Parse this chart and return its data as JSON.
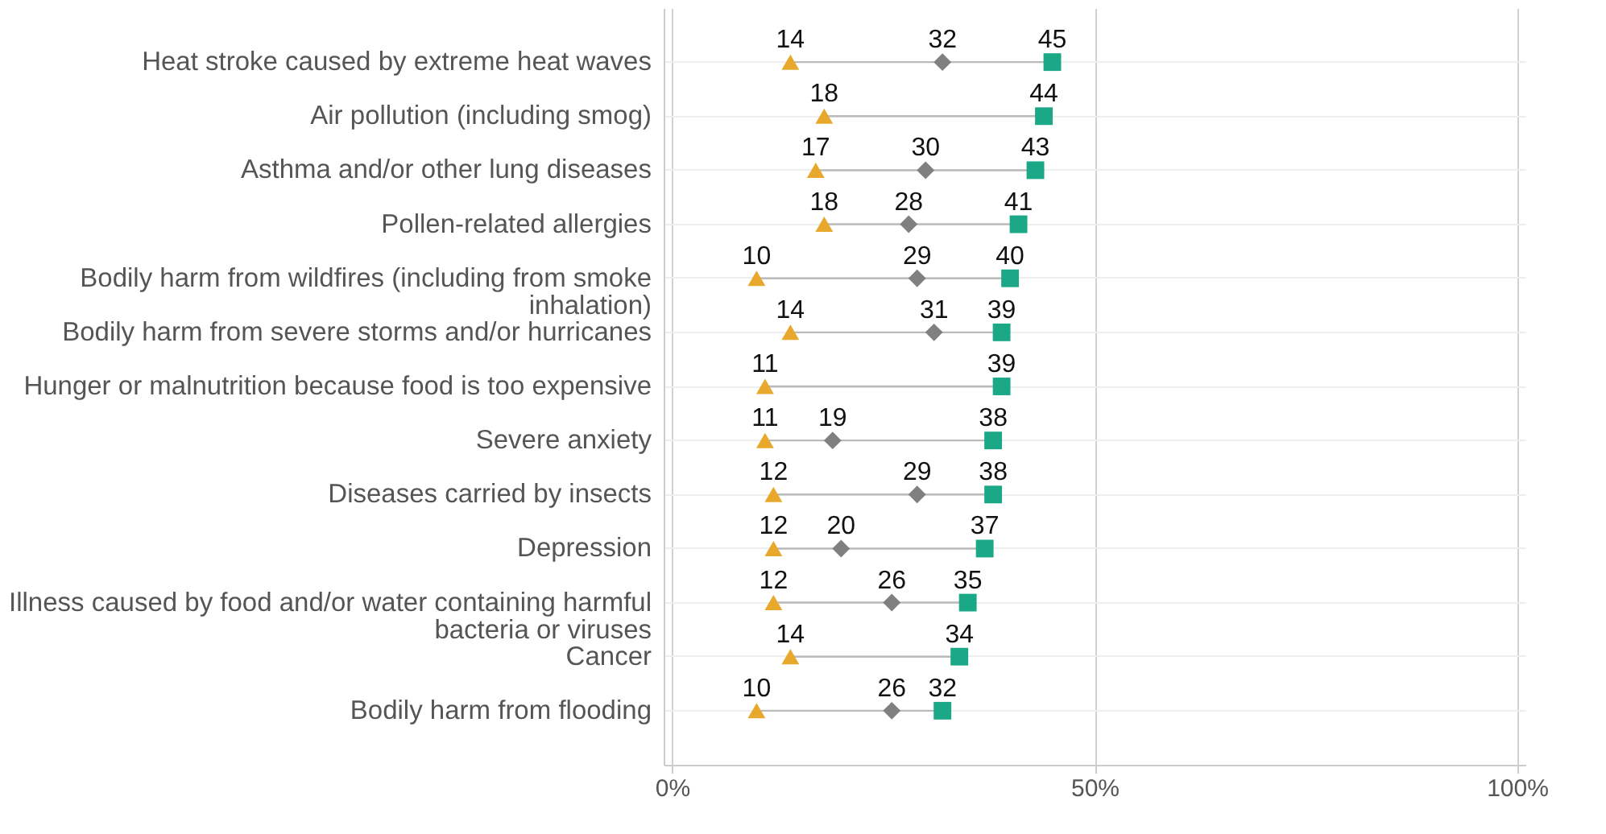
{
  "chart_data": {
    "type": "scatter",
    "orientation": "horizontal",
    "categories": [
      "Heat stroke caused by extreme heat waves",
      "Air pollution (including smog)",
      "Asthma and/or other lung diseases",
      "Pollen-related allergies",
      "Bodily harm from wildfires (including from smoke\ninhalation)",
      "Bodily harm from severe storms and/or hurricanes",
      "Hunger or malnutrition because food is too expensive",
      "Severe anxiety",
      "Diseases carried by insects",
      "Depression",
      "Illness caused by food and/or water containing harmful\nbacteria or viruses",
      "Cancer",
      "Bodily harm from flooding"
    ],
    "series": [
      {
        "color": "#e8a82b",
        "marker": "triangle",
        "values": [
          14,
          18,
          17,
          18,
          10,
          14,
          11,
          11,
          12,
          12,
          12,
          14,
          10
        ]
      },
      {
        "color": "#808080",
        "marker": "diamond",
        "values": [
          32,
          null,
          30,
          28,
          29,
          31,
          null,
          19,
          29,
          20,
          26,
          null,
          26
        ]
      },
      {
        "color": "#1aa886",
        "marker": "square",
        "values": [
          45,
          44,
          43,
          41,
          40,
          39,
          39,
          38,
          38,
          37,
          35,
          34,
          32
        ]
      }
    ],
    "xlim": [
      -1,
      101
    ],
    "xticks": [
      {
        "value": 0,
        "label": "0%"
      },
      {
        "value": 50,
        "label": "50%"
      },
      {
        "value": 100,
        "label": "100%"
      }
    ],
    "grid": true,
    "data_labels": true
  }
}
